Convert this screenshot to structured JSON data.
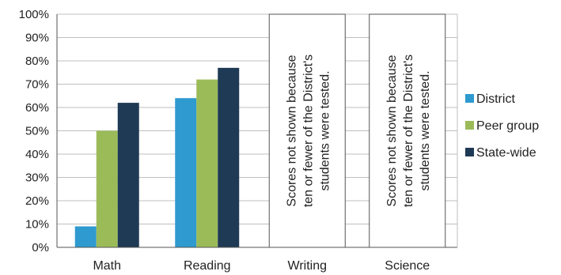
{
  "chart_data": {
    "type": "bar",
    "categories": [
      "Math",
      "Reading",
      "Writing",
      "Science"
    ],
    "series": [
      {
        "name": "District",
        "color": "#2e9ad0",
        "values": [
          9,
          64,
          null,
          null
        ]
      },
      {
        "name": "Peer group",
        "color": "#9bbb59",
        "values": [
          50,
          72,
          null,
          null
        ]
      },
      {
        "name": "State-wide",
        "color": "#1f3a55",
        "values": [
          62,
          77,
          null,
          null
        ]
      }
    ],
    "ylim": [
      0,
      100
    ],
    "yticks": [
      "0%",
      "10%",
      "20%",
      "30%",
      "40%",
      "50%",
      "60%",
      "70%",
      "80%",
      "90%",
      "100%"
    ],
    "title": "",
    "xlabel": "",
    "ylabel": "",
    "grid": true,
    "legend_position": "right",
    "annotations": [
      {
        "category": "Writing",
        "lines": [
          "Scores not shown because",
          "ten or fewer of the District's",
          "students were tested."
        ]
      },
      {
        "category": "Science",
        "lines": [
          "Scores not shown because",
          "ten or fewer of the District's",
          "students were tested."
        ]
      }
    ]
  }
}
